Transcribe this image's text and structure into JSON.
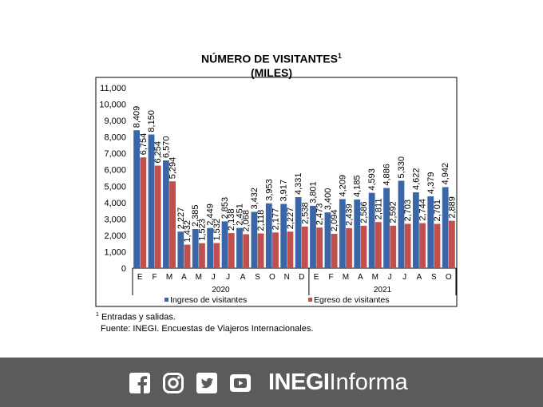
{
  "title": {
    "line1": "NÚMERO DE VISITANTES",
    "sup": "1",
    "line2": "(MILES)"
  },
  "chart_data": {
    "type": "bar",
    "categories": [
      "E",
      "F",
      "M",
      "A",
      "M",
      "J",
      "J",
      "A",
      "S",
      "O",
      "N",
      "D",
      "E",
      "F",
      "M",
      "A",
      "M",
      "J",
      "J",
      "A",
      "S",
      "O"
    ],
    "groups": [
      {
        "label": "2020",
        "count": 12
      },
      {
        "label": "2021",
        "count": 10
      }
    ],
    "series": [
      {
        "name": "Ingreso de visitantes",
        "color": "#3a66a8",
        "values": [
          8409,
          8150,
          6570,
          2227,
          2385,
          2449,
          2853,
          2451,
          3432,
          3953,
          3917,
          4331,
          3801,
          3400,
          4209,
          4185,
          4593,
          4886,
          5330,
          4622,
          4379,
          4942
        ],
        "labels": [
          "8,409",
          "8,150",
          "6,570",
          "2,227",
          "2,385",
          "2,449",
          "2,853",
          "2,451",
          "3,432",
          "3,953",
          "3,917",
          "4,331",
          "3,801",
          "3,400",
          "4,209",
          "4,185",
          "4,593",
          "4,886",
          "5,330",
          "4,622",
          "4,379",
          "4,942"
        ]
      },
      {
        "name": "Egreso de visitantes",
        "color": "#c0504d",
        "values": [
          6754,
          6254,
          5294,
          1432,
          1523,
          1532,
          2138,
          2068,
          2118,
          2177,
          2227,
          2538,
          2473,
          2094,
          2439,
          2586,
          2811,
          2592,
          2703,
          2744,
          2701,
          2889
        ],
        "labels": [
          "6,754",
          "6,254",
          "5,294",
          "1,432",
          "1,523",
          "1,532",
          "2,138",
          "2,068",
          "2,118",
          "2,177",
          "2,227",
          "2,538",
          "2,473",
          "2,094",
          "2,439",
          "2,586",
          "2,811",
          "2,592",
          "2,703",
          "2,744",
          "2,701",
          "2,889"
        ]
      }
    ],
    "ylim": [
      0,
      11000
    ],
    "yticks": [
      0,
      1000,
      2000,
      3000,
      4000,
      5000,
      6000,
      7000,
      8000,
      9000,
      10000,
      11000
    ],
    "ytick_labels": [
      "0",
      "1,000",
      "2,000",
      "3,000",
      "4,000",
      "5,000",
      "6,000",
      "7,000",
      "8,000",
      "9,000",
      "10,000",
      "11,000"
    ],
    "legend_position": "bottom",
    "grid": false
  },
  "notes": {
    "sup": "1",
    "line1": "Entradas y salidas.",
    "line2": "Fuente: INEGI. Encuestas de Viajeros Internacionales."
  },
  "footer": {
    "brand_bold": "INEGI",
    "brand_light": "Informa",
    "social_icons": [
      "facebook-icon",
      "instagram-icon",
      "twitter-icon",
      "youtube-icon"
    ],
    "background": "#5b5b5b"
  }
}
